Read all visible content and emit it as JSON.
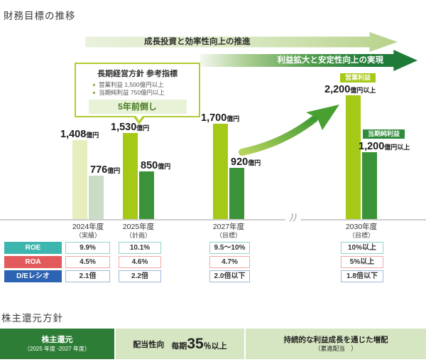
{
  "page": {
    "title": "財務目標の推移",
    "section2_title": "株主還元方針"
  },
  "arrows": {
    "top": "成長投資と効率性向上の推進",
    "bottom": "利益拡大と安定性向上の実現"
  },
  "callout": {
    "title": "長期経営方針 参考指標",
    "bullets": [
      "営業利益  1,500億円以上",
      "当期純利益  750億円以上"
    ],
    "highlight": "5年前倒し"
  },
  "misc": {
    "axis_break": "))"
  },
  "colors": {
    "op_bar": "#a4c916",
    "net_bar": "#3b9339",
    "op_bar_past": "#e7edbd",
    "net_bar_past": "#cbdcc6",
    "op_badge_bg": "#a4c916",
    "net_badge_bg": "#2e8b3a",
    "swoosh_start": "#b6d35c",
    "swoosh_end": "#3f9a33"
  },
  "chart_data": {
    "type": "bar",
    "title": "財務目標の推移",
    "unit": "億円",
    "axis_break_between": [
      "2027年度",
      "2030年度"
    ],
    "categories": [
      {
        "line1": "2024年度",
        "line2": "（実績）"
      },
      {
        "line1": "2025年度",
        "line2": "（計画）"
      },
      {
        "line1": "2027年度",
        "line2": "（目標）"
      },
      {
        "line1": "2030年度",
        "line2": "（目標）"
      }
    ],
    "series": [
      {
        "name": "営業利益",
        "badge": "営業利益",
        "values": [
          1408,
          1530,
          1700,
          2200
        ],
        "labels": [
          {
            "num": "1,408",
            "suffix": "億円"
          },
          {
            "num": "1,530",
            "suffix": "億円"
          },
          {
            "num": "1,700",
            "suffix": "億円"
          },
          {
            "num": "2,200",
            "suffix": "億円以上"
          }
        ]
      },
      {
        "name": "当期純利益",
        "badge": "当期純利益",
        "values": [
          776,
          850,
          920,
          1200
        ],
        "labels": [
          {
            "num": "776",
            "suffix": "億円"
          },
          {
            "num": "850",
            "suffix": "億円"
          },
          {
            "num": "920",
            "suffix": "億円"
          },
          {
            "num": "1,200",
            "suffix": "億円以上"
          }
        ]
      }
    ]
  },
  "table": {
    "rows": [
      {
        "label": "ROE",
        "header_color": "#3cb6ae",
        "border_color": "#8fd3cb",
        "values": [
          "9.9%",
          "10.1%",
          "9.5〜10%",
          "10%以上"
        ]
      },
      {
        "label": "ROA",
        "header_color": "#e25a5c",
        "border_color": "#f3a8a8",
        "values": [
          "4.5%",
          "4.6%",
          "4.7%",
          "5%以上"
        ]
      },
      {
        "label": "D/Eレシオ",
        "header_color": "#2d63b3",
        "border_color": "#9db9dd",
        "values": [
          "2.1倍",
          "2.2倍",
          "2.0倍以下",
          "1.8倍以下"
        ]
      }
    ]
  },
  "shareholder": {
    "box1_line1": "株主還元",
    "box1_line2": "（2025 年度 -2027 年度）",
    "box2_label": "配当性向",
    "box2_prefix": "毎期",
    "box2_big": "35",
    "box2_suffix": "％以上",
    "box3_line1": "持続的な利益成長を通じた増配",
    "box3_line2": "（累進配当　）"
  }
}
